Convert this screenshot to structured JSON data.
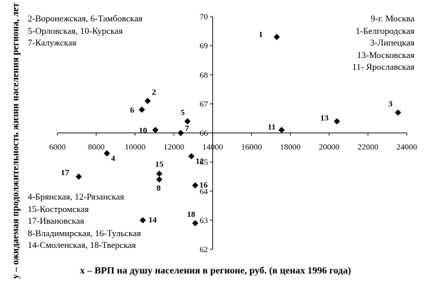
{
  "chart_data": {
    "type": "scatter",
    "title": "",
    "xlabel": "x – ВРП на душу населения в регионе, руб. (в ценах 1996 года)",
    "ylabel": "y – ожидаемая продолжительность жизни населения региона, лет",
    "xlim": [
      6000,
      24000
    ],
    "ylim": [
      62,
      70
    ],
    "x_ticks": [
      6000,
      8000,
      10000,
      12000,
      14000,
      16000,
      18000,
      20000,
      22000,
      24000
    ],
    "y_ticks": [
      62,
      63,
      64,
      65,
      66,
      67,
      68,
      69,
      70
    ],
    "axis_crossing": {
      "x_axis_at_y": 66,
      "y_axis_at_x": 14000
    },
    "grid": false,
    "marker": "diamond",
    "marker_color": "#000000",
    "points": [
      {
        "label": "1",
        "x": 17300,
        "y": 69.3
      },
      {
        "label": "2",
        "x": 10650,
        "y": 67.1
      },
      {
        "label": "3",
        "x": 23550,
        "y": 66.7
      },
      {
        "label": "4",
        "x": 8550,
        "y": 65.3
      },
      {
        "label": "5",
        "x": 12700,
        "y": 66.4
      },
      {
        "label": "6",
        "x": 10350,
        "y": 66.8
      },
      {
        "label": "7",
        "x": 12350,
        "y": 66.0
      },
      {
        "label": "8",
        "x": 11250,
        "y": 64.4
      },
      {
        "label": "9",
        "x": null,
        "y": null
      },
      {
        "label": "10",
        "x": 11050,
        "y": 66.1
      },
      {
        "label": "11",
        "x": 17550,
        "y": 66.1
      },
      {
        "label": "12",
        "x": 12900,
        "y": 65.2
      },
      {
        "label": "13",
        "x": 20400,
        "y": 66.4
      },
      {
        "label": "14",
        "x": 10400,
        "y": 63.0
      },
      {
        "label": "15",
        "x": 11250,
        "y": 64.6
      },
      {
        "label": "16",
        "x": 13100,
        "y": 64.2
      },
      {
        "label": "17",
        "x": 7100,
        "y": 64.5
      },
      {
        "label": "18",
        "x": 13100,
        "y": 62.9
      }
    ]
  },
  "legends": {
    "top_left": [
      "2-Воронежская, 6-Тамбовская",
      "5-Орловская, 10-Курская",
      "7-Калужская"
    ],
    "top_right": [
      "9-г. Москва",
      "1-Белгородская",
      "3-Липецкая",
      "13-Московская",
      "11- Ярославская"
    ],
    "bottom_left": [
      "4-Брянская, 12-Рязанская",
      "15-Костромская",
      "17-Ивановская",
      "8-Владимирская, 16-Тульская",
      "14-Смоленская, 18-Тверская"
    ]
  }
}
